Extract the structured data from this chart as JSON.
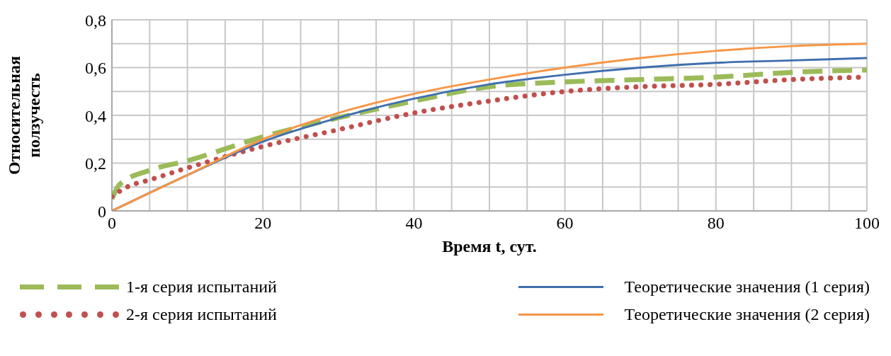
{
  "chart_data": {
    "type": "line",
    "xlabel": "Время t, сут.",
    "ylabel": "Относительная ползучесть",
    "xlim": [
      0,
      100
    ],
    "ylim": [
      0,
      0.8
    ],
    "xticks": [
      0,
      {
        "value": 5,
        "label": null
      },
      {
        "value": 10,
        "label": null
      },
      {
        "value": 15,
        "label": null
      },
      20,
      {
        "value": 25,
        "label": null
      },
      {
        "value": 30,
        "label": null
      },
      {
        "value": 35,
        "label": null
      },
      40,
      {
        "value": 45,
        "label": null
      },
      {
        "value": 50,
        "label": null
      },
      {
        "value": 55,
        "label": null
      },
      60,
      {
        "value": 65,
        "label": null
      },
      {
        "value": 70,
        "label": null
      },
      {
        "value": 75,
        "label": null
      },
      80,
      {
        "value": 85,
        "label": null
      },
      {
        "value": 90,
        "label": null
      },
      {
        "value": 95,
        "label": null
      },
      100
    ],
    "yticks": [
      {
        "value": 0,
        "label": "0"
      },
      {
        "value": 0.1,
        "label": null
      },
      {
        "value": 0.2,
        "label": "0,2"
      },
      {
        "value": 0.3,
        "label": null
      },
      {
        "value": 0.4,
        "label": "0,4"
      },
      {
        "value": 0.5,
        "label": null
      },
      {
        "value": 0.6,
        "label": "0,6"
      },
      {
        "value": 0.7,
        "label": null
      },
      {
        "value": 0.8,
        "label": "0,8"
      }
    ],
    "grid": true,
    "legend": "bottom",
    "marker": "none",
    "series": [
      {
        "name": "1-я серия испытаний",
        "color": "#9bbb59",
        "line_style": "dashed",
        "x": [
          0,
          1,
          5,
          10,
          20,
          30,
          40,
          50,
          60,
          70,
          80,
          90,
          100
        ],
        "values": [
          0.05,
          0.11,
          0.17,
          0.21,
          0.31,
          0.39,
          0.46,
          0.52,
          0.54,
          0.55,
          0.56,
          0.58,
          0.59
        ]
      },
      {
        "name": "2-я серия испытаний",
        "color": "#c0504d",
        "line_style": "dotted",
        "x": [
          0,
          2,
          5,
          10,
          20,
          30,
          40,
          50,
          60,
          70,
          80,
          90,
          100
        ],
        "values": [
          0.06,
          0.1,
          0.13,
          0.18,
          0.27,
          0.34,
          0.41,
          0.46,
          0.5,
          0.52,
          0.53,
          0.55,
          0.56
        ]
      },
      {
        "name": "Теоретические значения (1 серия)",
        "color": "#3f6fae",
        "line_style": "solid",
        "x": [
          0,
          10,
          20,
          30,
          40,
          50,
          60,
          70,
          80,
          90,
          100
        ],
        "values": [
          0,
          0.15,
          0.29,
          0.39,
          0.47,
          0.53,
          0.57,
          0.6,
          0.62,
          0.63,
          0.64
        ]
      },
      {
        "name": "Теоретические значения (2 серия)",
        "color": "#f79646",
        "line_style": "solid",
        "x": [
          0,
          10,
          20,
          30,
          40,
          50,
          60,
          70,
          80,
          90,
          100
        ],
        "values": [
          0,
          0.15,
          0.3,
          0.41,
          0.49,
          0.55,
          0.6,
          0.64,
          0.67,
          0.69,
          0.7
        ]
      }
    ]
  }
}
